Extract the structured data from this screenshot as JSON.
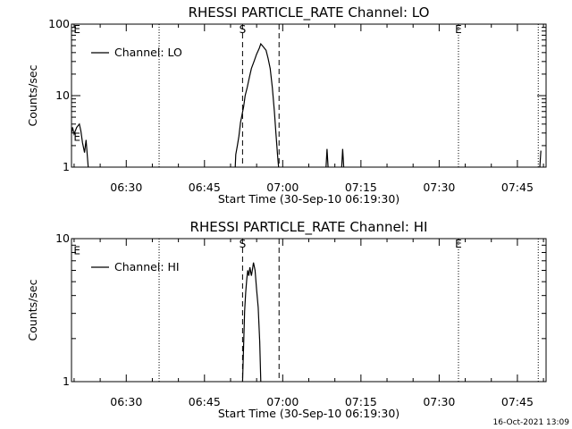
{
  "chart_data": [
    {
      "type": "line",
      "title": "RHESSI PARTICLE_RATE Channel: LO",
      "xlabel": "Start Time (30-Sep-10 06:19:30)",
      "ylabel": "Counts/sec",
      "yscale": "log",
      "ylim": [
        1,
        100
      ],
      "y_ticks": [
        1,
        10,
        100
      ],
      "y_tick_labels": [
        "1",
        "10",
        "100"
      ],
      "xlim": [
        19.5,
        110.5
      ],
      "x_ticks": [
        30,
        45,
        60,
        75,
        90,
        105
      ],
      "x_tick_labels": [
        "06:30",
        "06:45",
        "07:00",
        "07:15",
        "07:30",
        "07:45"
      ],
      "legend": {
        "position": "top-left",
        "entries": [
          "Channel: LO"
        ]
      },
      "vlines": [
        {
          "x": 36.3,
          "style": "dotted",
          "label": ""
        },
        {
          "x": 52.3,
          "style": "dashed",
          "label": "S"
        },
        {
          "x": 59.3,
          "style": "dashed",
          "label": ""
        },
        {
          "x": 93.7,
          "style": "dotted",
          "label": "E"
        },
        {
          "x": 109.0,
          "style": "dotted",
          "label": ""
        }
      ],
      "edge_labels": [
        {
          "text": "E",
          "x": 19.9,
          "y": 100
        },
        {
          "text": "E",
          "x": 19.9,
          "y": 3.1
        }
      ],
      "series": [
        {
          "name": "Channel: LO",
          "segments": [
            [
              [
                19.5,
                3.0
              ],
              [
                19.7,
                3.6
              ],
              [
                20.0,
                2.9
              ],
              [
                20.5,
                3.6
              ],
              [
                21.0,
                4.0
              ],
              [
                21.3,
                3.2
              ],
              [
                21.6,
                2.2
              ],
              [
                22.0,
                1.6
              ],
              [
                22.3,
                2.4
              ],
              [
                22.7,
                1.0
              ]
            ],
            [
              [
                50.9,
                1.0
              ],
              [
                51.0,
                1.5
              ],
              [
                51.3,
                2.0
              ],
              [
                51.6,
                2.7
              ],
              [
                51.9,
                4.2
              ],
              [
                52.2,
                5.4
              ],
              [
                52.5,
                7.0
              ],
              [
                52.8,
                10.0
              ],
              [
                53.2,
                13.0
              ],
              [
                53.6,
                18.0
              ],
              [
                54.0,
                24.0
              ],
              [
                54.5,
                30.0
              ],
              [
                55.0,
                38.0
              ],
              [
                55.5,
                46.0
              ],
              [
                55.8,
                53.0
              ],
              [
                56.3,
                48.0
              ],
              [
                56.8,
                43.0
              ],
              [
                57.2,
                33.0
              ],
              [
                57.6,
                24.0
              ],
              [
                58.0,
                13.0
              ],
              [
                58.4,
                6.0
              ],
              [
                58.7,
                3.0
              ],
              [
                59.0,
                1.5
              ],
              [
                59.2,
                1.0
              ]
            ],
            [
              [
                68.3,
                1.0
              ],
              [
                68.5,
                1.8
              ],
              [
                68.7,
                1.0
              ]
            ],
            [
              [
                71.3,
                1.0
              ],
              [
                71.5,
                1.8
              ],
              [
                71.7,
                1.0
              ]
            ],
            [
              [
                109.3,
                1.0
              ],
              [
                109.5,
                1.7
              ]
            ]
          ]
        }
      ]
    },
    {
      "type": "line",
      "title": "RHESSI PARTICLE_RATE Channel: HI",
      "xlabel": "Start Time (30-Sep-10 06:19:30)",
      "ylabel": "Counts/sec",
      "yscale": "log",
      "ylim": [
        1,
        10
      ],
      "y_ticks": [
        1,
        10
      ],
      "y_tick_labels": [
        "1",
        "10"
      ],
      "xlim": [
        19.5,
        110.5
      ],
      "x_ticks": [
        30,
        45,
        60,
        75,
        90,
        105
      ],
      "x_tick_labels": [
        "06:30",
        "06:45",
        "07:00",
        "07:15",
        "07:30",
        "07:45"
      ],
      "legend": {
        "position": "top-left",
        "entries": [
          "Channel: HI"
        ]
      },
      "vlines": [
        {
          "x": 36.3,
          "style": "dotted",
          "label": ""
        },
        {
          "x": 52.3,
          "style": "dashed",
          "label": "S"
        },
        {
          "x": 59.3,
          "style": "dashed",
          "label": ""
        },
        {
          "x": 93.7,
          "style": "dotted",
          "label": "E"
        },
        {
          "x": 109.0,
          "style": "dotted",
          "label": ""
        }
      ],
      "edge_labels": [
        {
          "text": "E",
          "x": 19.9,
          "y": 9.0
        }
      ],
      "series": [
        {
          "name": "Channel: HI",
          "segments": [
            [
              [
                52.3,
                1.0
              ],
              [
                52.5,
                1.8
              ],
              [
                52.7,
                3.1
              ],
              [
                52.9,
                4.2
              ],
              [
                53.1,
                5.2
              ],
              [
                53.3,
                6.0
              ],
              [
                53.5,
                5.5
              ],
              [
                53.7,
                6.3
              ],
              [
                54.0,
                5.5
              ],
              [
                54.2,
                6.1
              ],
              [
                54.4,
                6.8
              ],
              [
                54.7,
                6.0
              ],
              [
                55.0,
                4.4
              ],
              [
                55.3,
                3.3
              ],
              [
                55.6,
                1.9
              ],
              [
                55.8,
                1.0
              ]
            ]
          ]
        }
      ]
    }
  ],
  "footer": {
    "timestamp": "16-Oct-2021 13:09"
  }
}
